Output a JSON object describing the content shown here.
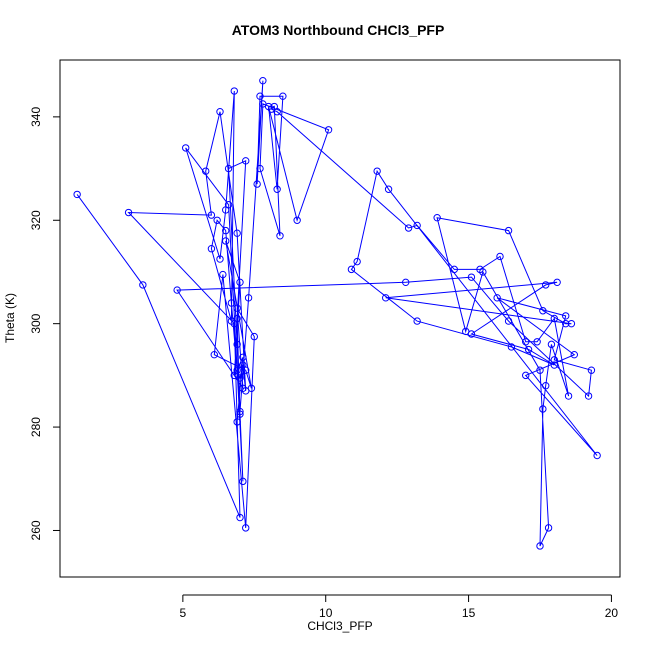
{
  "chart_data": {
    "type": "line",
    "title": "ATOM3 Northbound CHCl3_PFP",
    "xlabel": "CHCl3_PFP",
    "ylabel": "Theta (K)",
    "xlim": [
      0.7,
      20.3
    ],
    "ylim": [
      251,
      351
    ],
    "xticks": [
      5,
      10,
      15,
      20
    ],
    "yticks": [
      260,
      280,
      300,
      320,
      340
    ],
    "grid": false,
    "legend": "none",
    "color": "#0000ff",
    "series": [
      {
        "x": [
          1.3,
          3.6,
          7.0,
          6.8,
          3.1,
          6.0,
          5.8,
          6.3,
          6.9,
          7.2,
          7.1,
          7.0,
          6.9,
          6.7,
          6.5,
          6.2,
          6.0,
          6.7,
          6.8,
          6.5,
          6.3,
          5.1,
          6.6,
          7.1,
          7.0,
          6.9,
          7.2,
          6.6,
          6.9,
          7.0,
          7.3,
          7.8,
          7.6,
          7.7,
          8.5,
          8.3,
          8.0,
          9.0,
          10.1,
          7.8,
          7.7,
          8.4,
          8.2,
          8.1,
          8.3,
          12.9,
          13.2,
          14.5,
          15.4,
          16.1,
          17.0,
          17.4,
          18.0,
          18.5,
          17.9,
          17.7,
          17.6,
          17.5,
          17.8,
          17.5,
          15.5,
          14.9,
          13.9,
          16.4,
          17.6,
          18.4,
          18.6,
          12.1,
          18.1,
          17.7,
          15.1,
          17.1,
          18.0,
          16.5,
          13.2,
          10.9,
          11.1,
          11.8,
          12.2,
          19.5,
          17.0,
          18.7,
          16.0,
          18.4,
          18.0,
          19.3,
          19.2,
          16.4,
          15.1,
          12.8,
          4.8,
          7.1,
          6.9,
          7.5,
          7.2,
          6.4,
          6.1,
          7.2,
          7.4,
          6.5,
          7.0,
          6.8,
          7.1,
          6.9
        ],
        "y": [
          325,
          307.5,
          262.5,
          300,
          321.5,
          321,
          329.5,
          341,
          317.5,
          287,
          292,
          289.5,
          291,
          304,
          318,
          320,
          314.5,
          300.5,
          345,
          322,
          312.5,
          334,
          323,
          269.5,
          282.5,
          301,
          331.5,
          330,
          296,
          283,
          305,
          347,
          327,
          344,
          344,
          326,
          342,
          320,
          337.5,
          342.5,
          330,
          317,
          342,
          341.5,
          341,
          318.5,
          319,
          310.5,
          310.5,
          313,
          296.5,
          296.5,
          301,
          286,
          296,
          288,
          283.5,
          257,
          260.5,
          291,
          310,
          298.5,
          320.5,
          318,
          302.5,
          300,
          300,
          305,
          308,
          307.5,
          298,
          295,
          292,
          295.5,
          300.5,
          310.5,
          312,
          329.5,
          326,
          274.5,
          290,
          294,
          305,
          301.5,
          293,
          291,
          286,
          300.5,
          309,
          308,
          306.5,
          287.5,
          303,
          297.5,
          260.5,
          309.5,
          294,
          291,
          287.5,
          316,
          308,
          290,
          293.5,
          281
        ]
      }
    ]
  }
}
